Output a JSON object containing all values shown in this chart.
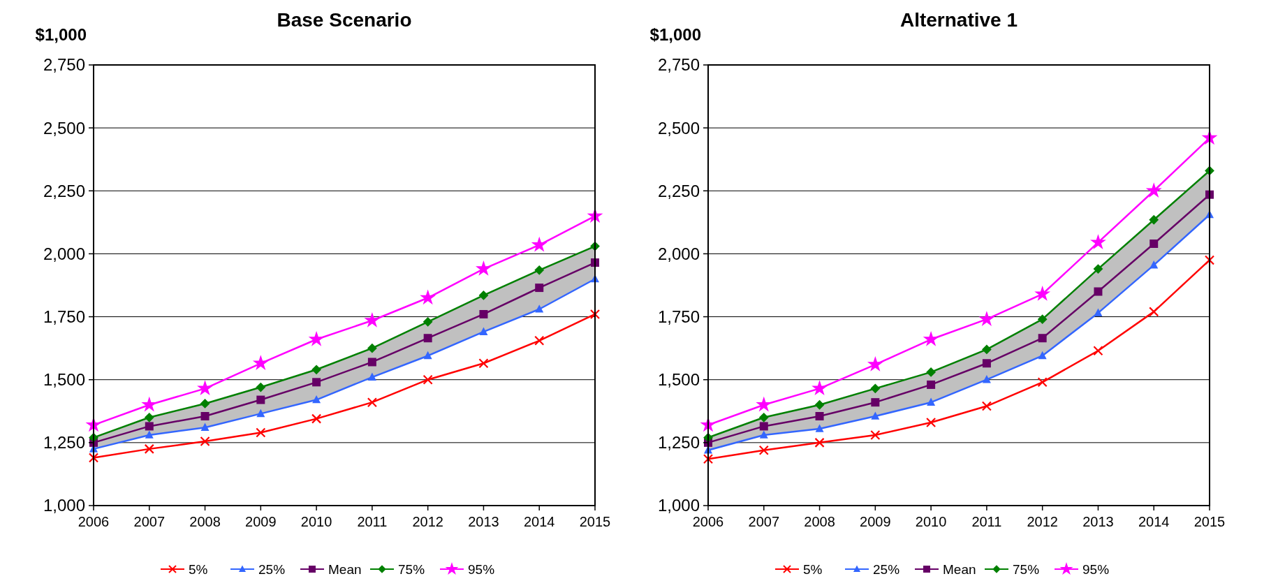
{
  "chart_data": [
    {
      "type": "line",
      "title": "Base Scenario",
      "ylabel": "$1,000",
      "x": [
        2006,
        2007,
        2008,
        2009,
        2010,
        2011,
        2012,
        2013,
        2014,
        2015
      ],
      "xlim": [
        2006,
        2015
      ],
      "xticks": [
        2006,
        2007,
        2008,
        2009,
        2010,
        2011,
        2012,
        2013,
        2014,
        2015
      ],
      "ylim": [
        1000,
        2750
      ],
      "yticks": [
        {
          "value": 1000,
          "label": "1,000"
        },
        {
          "value": 1250,
          "label": "1,250"
        },
        {
          "value": 1500,
          "label": "1,500"
        },
        {
          "value": 1750,
          "label": "1,750"
        },
        {
          "value": 2000,
          "label": "2,000"
        },
        {
          "value": 2250,
          "label": "2,250"
        },
        {
          "value": 2500,
          "label": "2,500"
        },
        {
          "value": 2750,
          "label": "2,750"
        }
      ],
      "grid": "y",
      "legend": "bottom",
      "line_style": "solid",
      "series": [
        {
          "name": "5%",
          "color": "#ff0000",
          "marker": "cross",
          "values": [
            1190,
            1225,
            1255,
            1290,
            1345,
            1410,
            1500,
            1565,
            1655,
            1760
          ]
        },
        {
          "name": "25%",
          "color": "#3366ff",
          "marker": "triangle",
          "values": [
            1225,
            1280,
            1310,
            1365,
            1420,
            1510,
            1595,
            1690,
            1780,
            1900
          ]
        },
        {
          "name": "Mean",
          "color": "#660066",
          "marker": "square",
          "values": [
            1250,
            1315,
            1355,
            1420,
            1490,
            1570,
            1665,
            1760,
            1865,
            1965
          ],
          "lower": [
            1225,
            1280,
            1310,
            1365,
            1420,
            1510,
            1595,
            1690,
            1780,
            1900
          ],
          "upper": [
            1270,
            1350,
            1405,
            1470,
            1540,
            1625,
            1730,
            1835,
            1935,
            2030
          ]
        },
        {
          "name": "75%",
          "color": "#008000",
          "marker": "diamond",
          "values": [
            1270,
            1350,
            1405,
            1470,
            1540,
            1625,
            1730,
            1835,
            1935,
            2030
          ]
        },
        {
          "name": "95%",
          "color": "#ff00ff",
          "marker": "star",
          "values": [
            1320,
            1400,
            1465,
            1565,
            1660,
            1735,
            1825,
            1940,
            2035,
            2150
          ]
        }
      ]
    },
    {
      "type": "line",
      "title": "Alternative 1",
      "ylabel": "$1,000",
      "x": [
        2006,
        2007,
        2008,
        2009,
        2010,
        2011,
        2012,
        2013,
        2014,
        2015
      ],
      "xlim": [
        2006,
        2015
      ],
      "xticks": [
        2006,
        2007,
        2008,
        2009,
        2010,
        2011,
        2012,
        2013,
        2014,
        2015
      ],
      "ylim": [
        1000,
        2750
      ],
      "yticks": [
        {
          "value": 1000,
          "label": "1,000"
        },
        {
          "value": 1250,
          "label": "1,250"
        },
        {
          "value": 1500,
          "label": "1,500"
        },
        {
          "value": 1750,
          "label": "1,750"
        },
        {
          "value": 2000,
          "label": "2,000"
        },
        {
          "value": 2250,
          "label": "2,250"
        },
        {
          "value": 2500,
          "label": "2,500"
        },
        {
          "value": 2750,
          "label": "2,750"
        }
      ],
      "grid": "y",
      "legend": "bottom",
      "line_style": "solid",
      "series": [
        {
          "name": "5%",
          "color": "#ff0000",
          "marker": "cross",
          "values": [
            1185,
            1220,
            1250,
            1280,
            1330,
            1395,
            1490,
            1615,
            1770,
            1975
          ]
        },
        {
          "name": "25%",
          "color": "#3366ff",
          "marker": "triangle",
          "values": [
            1220,
            1280,
            1305,
            1355,
            1410,
            1500,
            1595,
            1765,
            1955,
            2155
          ]
        },
        {
          "name": "Mean",
          "color": "#660066",
          "marker": "square",
          "values": [
            1250,
            1315,
            1355,
            1410,
            1480,
            1565,
            1665,
            1850,
            2040,
            2235
          ],
          "lower": [
            1220,
            1280,
            1305,
            1355,
            1410,
            1500,
            1595,
            1765,
            1955,
            2155
          ],
          "upper": [
            1270,
            1350,
            1400,
            1465,
            1530,
            1620,
            1740,
            1940,
            2135,
            2330
          ]
        },
        {
          "name": "75%",
          "color": "#008000",
          "marker": "diamond",
          "values": [
            1270,
            1350,
            1400,
            1465,
            1530,
            1620,
            1740,
            1940,
            2135,
            2330
          ]
        },
        {
          "name": "95%",
          "color": "#ff00ff",
          "marker": "star",
          "values": [
            1320,
            1400,
            1465,
            1560,
            1660,
            1740,
            1840,
            2045,
            2250,
            2460
          ]
        }
      ]
    }
  ]
}
